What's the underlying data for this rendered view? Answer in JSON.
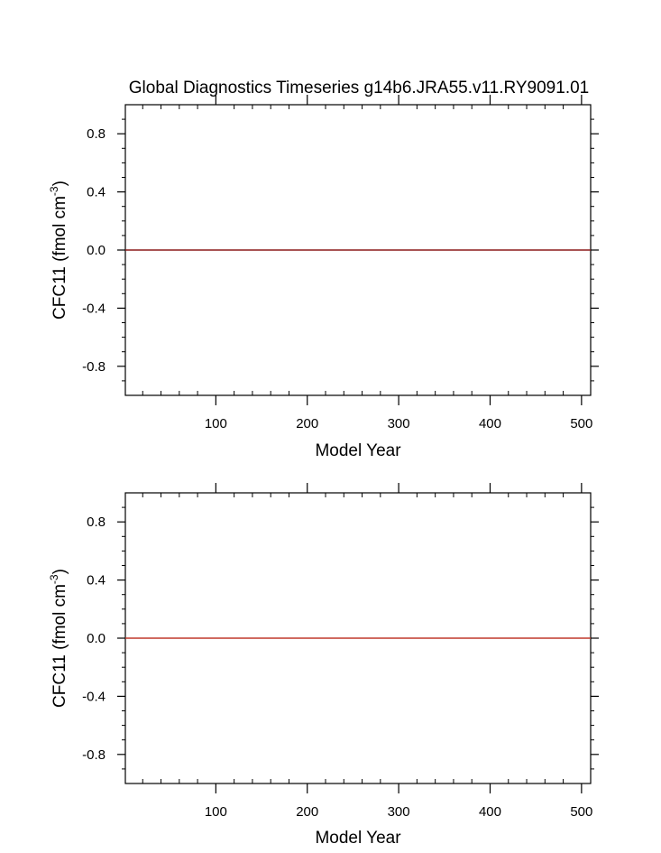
{
  "chart_data": [
    {
      "type": "line",
      "title": "Global Diagnostics Timeseries g14b6.JRA55.v11.RY9091.01",
      "xlabel": "Model Year",
      "ylabel_main": "CFC11 (fmol cm",
      "ylabel_sup": "-3",
      "ylabel_close": ")",
      "xlim": [
        1,
        510
      ],
      "ylim": [
        -1,
        1
      ],
      "xticks": [
        100,
        200,
        300,
        400,
        500
      ],
      "yticks": [
        -0.8,
        -0.4,
        0.0,
        0.4,
        0.8
      ],
      "ytick_labels": [
        "-0.8",
        "-0.4",
        "0.0",
        "0.4",
        "0.8"
      ],
      "grid": false,
      "series": [
        {
          "color": "#8b1a1a",
          "x": [
            1,
            510
          ],
          "y": [
            0,
            0
          ]
        }
      ]
    },
    {
      "type": "line",
      "title": "",
      "xlabel": "Model Year",
      "ylabel_main": "CFC11 (fmol cm",
      "ylabel_sup": "-3",
      "ylabel_close": ")",
      "xlim": [
        1,
        510
      ],
      "ylim": [
        -1,
        1
      ],
      "xticks": [
        100,
        200,
        300,
        400,
        500
      ],
      "yticks": [
        -0.8,
        -0.4,
        0.0,
        0.4,
        0.8
      ],
      "ytick_labels": [
        "-0.8",
        "-0.4",
        "0.0",
        "0.4",
        "0.8"
      ],
      "grid": false,
      "series": [
        {
          "color": "#c0392b",
          "x": [
            1,
            510
          ],
          "y": [
            0,
            0
          ]
        }
      ]
    }
  ]
}
